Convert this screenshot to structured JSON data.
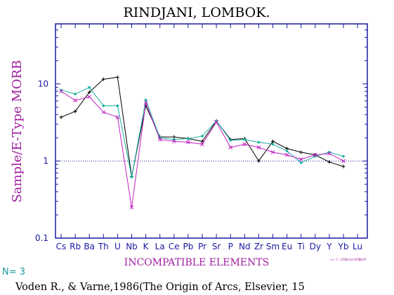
{
  "chart_data": {
    "type": "line",
    "title": "RINDJANI, LOMBOK.",
    "ylabel": "Sample/E-Type MORB",
    "xlabel": "INCOMPATIBLE ELEMENTS",
    "y_scale": "log",
    "ylim": [
      0.1,
      60
    ],
    "y_ticks": [
      "10",
      "1",
      "0.1"
    ],
    "reference_line": 1,
    "categories": [
      "Cs",
      "Rb",
      "Ba",
      "Th",
      "U",
      "Nb",
      "K",
      "La",
      "Ce",
      "Pb",
      "Pr",
      "Sr",
      "P",
      "Nd",
      "Zr",
      "Sm",
      "Eu",
      "Ti",
      "Dy",
      "Y",
      "Yb",
      "Lu"
    ],
    "series": [
      {
        "color": "#000000",
        "marker": "plus",
        "values": [
          3.7,
          4.4,
          7.8,
          11.5,
          12.2,
          0.63,
          5.2,
          2.05,
          2.05,
          1.95,
          1.8,
          3.3,
          1.9,
          1.95,
          1.0,
          1.8,
          1.45,
          1.3,
          1.2,
          0.97,
          0.85,
          null
        ]
      },
      {
        "color": "#1ab0a0",
        "marker": "dot",
        "values": [
          8.3,
          7.4,
          9.0,
          5.2,
          5.2,
          0.62,
          6.2,
          2.0,
          1.9,
          1.95,
          2.1,
          3.3,
          1.85,
          1.9,
          1.75,
          1.65,
          1.35,
          0.95,
          1.15,
          1.3,
          1.15,
          null
        ]
      },
      {
        "color": "#c020c0",
        "marker": "cross",
        "values": [
          8.0,
          6.1,
          6.8,
          4.3,
          3.7,
          0.25,
          5.7,
          1.9,
          1.8,
          1.75,
          1.65,
          3.2,
          1.5,
          1.65,
          1.5,
          1.3,
          1.2,
          1.05,
          1.2,
          1.25,
          1.0,
          null
        ]
      }
    ]
  },
  "footer": {
    "n_label": "N= 3",
    "file_path": "++  C:\\IGData\\RINDJA",
    "citation": "Voden R., & Varne,1986(The Origin of Arcs, Elsevier, 15"
  }
}
